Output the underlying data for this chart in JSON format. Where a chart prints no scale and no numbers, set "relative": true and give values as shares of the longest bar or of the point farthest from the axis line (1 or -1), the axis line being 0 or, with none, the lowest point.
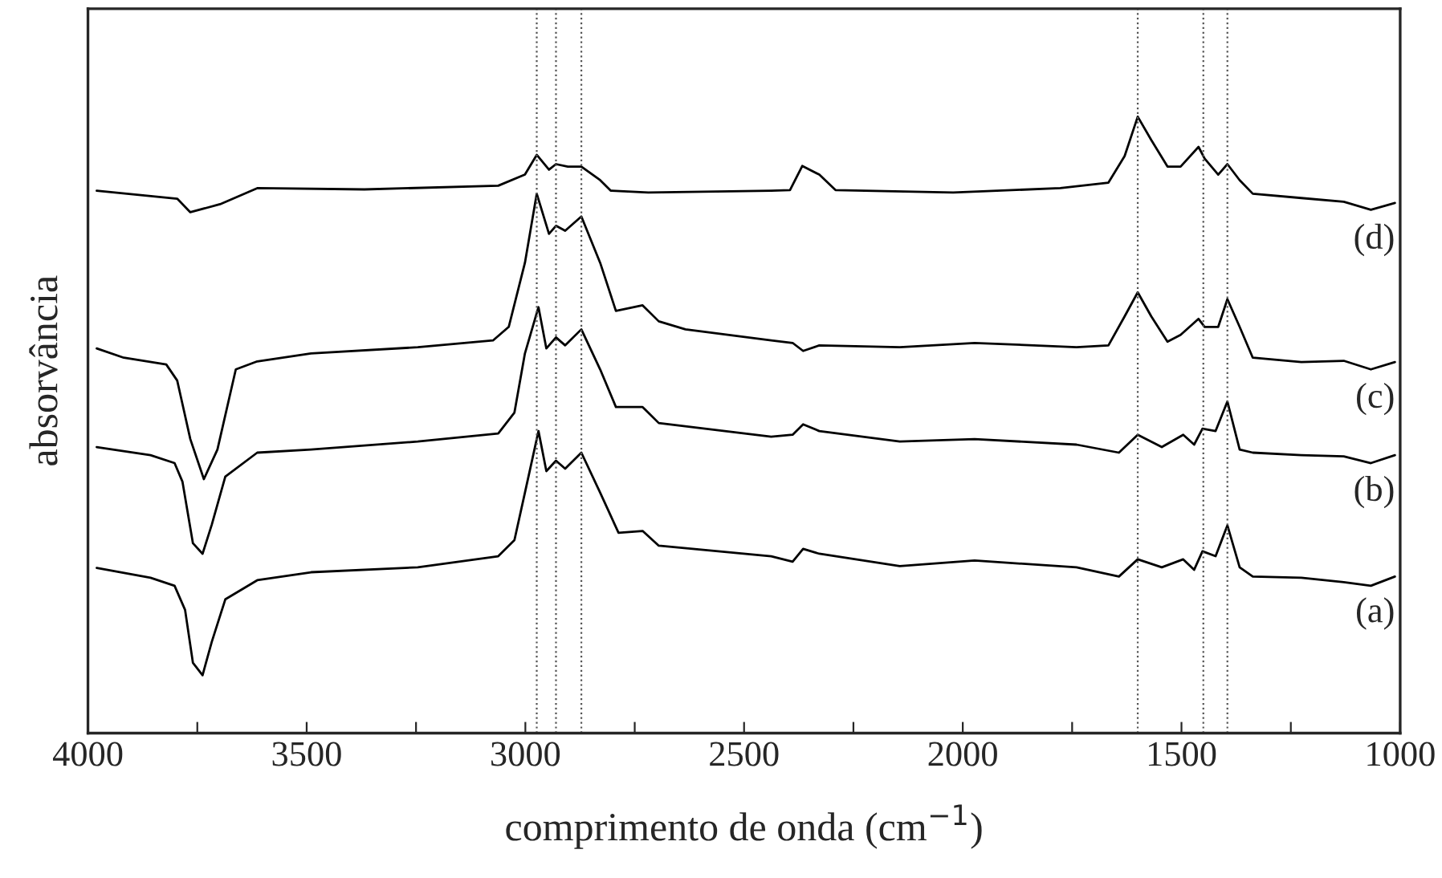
{
  "chart_data": {
    "type": "line",
    "relative": true,
    "xlabel": "comprimento de onda (cm$^{−1}$)",
    "ylabel": "absorvância",
    "xlim": [
      4000,
      1000
    ],
    "xticks": [
      4000,
      {
        "value": 3750,
        "label": null
      },
      3500,
      {
        "value": 3250,
        "label": null
      },
      3000,
      {
        "value": 2750,
        "label": null
      },
      2500,
      {
        "value": 2250,
        "label": null
      },
      2000,
      {
        "value": 1750,
        "label": null
      },
      1500,
      {
        "value": 1250,
        "label": null
      },
      1000
    ],
    "grid": false,
    "legend": false,
    "marker": "none",
    "line_style": "solid",
    "series": [
      {
        "name": "(a)",
        "color": "#000000",
        "x": [
          3980,
          3857,
          3802,
          3778,
          3760,
          3738,
          3717,
          3686,
          3613,
          3490,
          3246,
          3062,
          3025,
          3001,
          2970,
          2952,
          2930,
          2909,
          2872,
          2829,
          2787,
          2732,
          2695,
          2438,
          2389,
          2365,
          2328,
          2144,
          1973,
          1740,
          1643,
          1600,
          1545,
          1496,
          1471,
          1452,
          1422,
          1395,
          1367,
          1337,
          1226,
          1129,
          1067,
          1012
        ],
        "values": [
          0.268,
          0.252,
          0.239,
          0.2,
          0.114,
          0.094,
          0.148,
          0.217,
          0.248,
          0.261,
          0.269,
          0.287,
          0.313,
          0.39,
          0.49,
          0.425,
          0.442,
          0.429,
          0.455,
          0.39,
          0.325,
          0.328,
          0.304,
          0.287,
          0.278,
          0.299,
          0.291,
          0.271,
          0.28,
          0.269,
          0.254,
          0.282,
          0.269,
          0.282,
          0.265,
          0.295,
          0.287,
          0.337,
          0.269,
          0.254,
          0.252,
          0.245,
          0.239,
          0.254
        ]
      },
      {
        "name": "(b)",
        "color": "#000000",
        "x": [
          3980,
          3857,
          3802,
          3784,
          3760,
          3738,
          3717,
          3686,
          3613,
          3490,
          3246,
          3062,
          3025,
          3001,
          2970,
          2952,
          2930,
          2909,
          2872,
          2829,
          2793,
          2732,
          2695,
          2438,
          2389,
          2365,
          2328,
          2144,
          1973,
          1740,
          1643,
          1600,
          1545,
          1496,
          1471,
          1452,
          1422,
          1395,
          1367,
          1337,
          1226,
          1129,
          1067,
          1012
        ],
        "values": [
          0.464,
          0.451,
          0.438,
          0.408,
          0.308,
          0.291,
          0.338,
          0.416,
          0.455,
          0.46,
          0.473,
          0.486,
          0.52,
          0.616,
          0.691,
          0.624,
          0.642,
          0.629,
          0.655,
          0.59,
          0.529,
          0.529,
          0.503,
          0.481,
          0.484,
          0.501,
          0.49,
          0.473,
          0.477,
          0.468,
          0.455,
          0.484,
          0.464,
          0.484,
          0.468,
          0.494,
          0.49,
          0.538,
          0.46,
          0.455,
          0.451,
          0.449,
          0.438,
          0.451
        ]
      },
      {
        "name": "(c)",
        "color": "#000000",
        "x": [
          3980,
          3918,
          3821,
          3796,
          3766,
          3735,
          3704,
          3662,
          3613,
          3490,
          3246,
          3074,
          3038,
          3001,
          2974,
          2946,
          2930,
          2909,
          2872,
          2829,
          2793,
          2732,
          2695,
          2634,
          2438,
          2389,
          2365,
          2328,
          2144,
          1973,
          1740,
          1667,
          1630,
          1600,
          1569,
          1532,
          1502,
          1461,
          1447,
          1416,
          1395,
          1367,
          1337,
          1226,
          1129,
          1067,
          1012
        ],
        "values": [
          0.624,
          0.609,
          0.598,
          0.572,
          0.477,
          0.412,
          0.46,
          0.59,
          0.603,
          0.616,
          0.626,
          0.637,
          0.659,
          0.763,
          0.875,
          0.81,
          0.823,
          0.815,
          0.838,
          0.763,
          0.685,
          0.694,
          0.668,
          0.655,
          0.637,
          0.633,
          0.62,
          0.629,
          0.626,
          0.633,
          0.626,
          0.629,
          0.676,
          0.715,
          0.676,
          0.635,
          0.646,
          0.672,
          0.659,
          0.659,
          0.704,
          0.659,
          0.609,
          0.602,
          0.604,
          0.59,
          0.602
        ]
      },
      {
        "name": "(d)",
        "color": "#000000",
        "x": [
          3980,
          3796,
          3766,
          3698,
          3613,
          3368,
          3062,
          3001,
          2974,
          2946,
          2930,
          2903,
          2872,
          2829,
          2805,
          2719,
          2438,
          2395,
          2367,
          2328,
          2291,
          2022,
          1777,
          1667,
          1630,
          1600,
          1569,
          1532,
          1502,
          1461,
          1447,
          1416,
          1395,
          1367,
          1337,
          1226,
          1129,
          1067,
          1012
        ],
        "values": [
          0.88,
          0.867,
          0.845,
          0.858,
          0.884,
          0.882,
          0.888,
          0.906,
          0.938,
          0.914,
          0.923,
          0.919,
          0.919,
          0.897,
          0.88,
          0.877,
          0.88,
          0.881,
          0.92,
          0.906,
          0.881,
          0.877,
          0.884,
          0.893,
          0.936,
          1.0,
          0.962,
          0.919,
          0.919,
          0.951,
          0.932,
          0.906,
          0.923,
          0.897,
          0.875,
          0.868,
          0.862,
          0.849,
          0.86
        ]
      }
    ],
    "ref_lines": [
      {
        "axis": "x",
        "value": 2974,
        "color": "#555555",
        "line_style": "dotted"
      },
      {
        "axis": "x",
        "value": 2930,
        "color": "#555555",
        "line_style": "dotted"
      },
      {
        "axis": "x",
        "value": 2872,
        "color": "#555555",
        "line_style": "dotted"
      },
      {
        "axis": "x",
        "value": 1600,
        "color": "#555555",
        "line_style": "dotted"
      },
      {
        "axis": "x",
        "value": 1450,
        "color": "#555555",
        "line_style": "dotted"
      },
      {
        "axis": "x",
        "value": 1395,
        "color": "#555555",
        "line_style": "dotted"
      }
    ]
  }
}
